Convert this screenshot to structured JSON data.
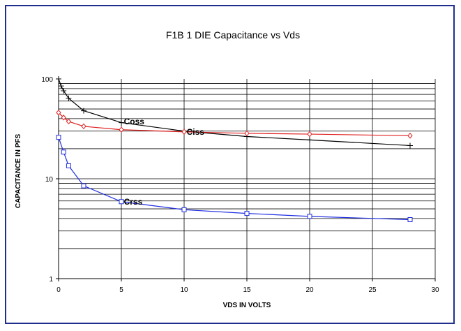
{
  "chart_data": {
    "type": "line",
    "title": "F1B 1 DIE Capacitance vs Vds",
    "xlabel": "VDS IN VOLTS",
    "ylabel": "CAPACITANCE IN PFS",
    "xlim": [
      0,
      30
    ],
    "ylim": [
      1,
      100
    ],
    "yscale": "log",
    "grid": true,
    "x_ticks": [
      "0",
      "5",
      "10",
      "15",
      "20",
      "25",
      "30"
    ],
    "y_ticks": [
      "1",
      "10",
      "100"
    ],
    "series": [
      {
        "name": "Coss",
        "color": "#000000",
        "marker": "plus",
        "x": [
          0,
          0.2,
          0.4,
          0.8,
          2,
          5,
          10,
          15,
          20,
          28
        ],
        "y": [
          100,
          85,
          76,
          64,
          48,
          36.5,
          30,
          26.5,
          24.5,
          21.5
        ]
      },
      {
        "name": "Ciss",
        "color": "#e02020",
        "marker": "diamond",
        "x": [
          0,
          0.4,
          0.8,
          2,
          5,
          10,
          15,
          20,
          28
        ],
        "y": [
          46,
          41,
          37.5,
          33.5,
          31,
          29.5,
          28.5,
          28,
          27
        ]
      },
      {
        "name": "Crss",
        "color": "#1f2ee0",
        "marker": "square",
        "x": [
          0,
          0.4,
          0.8,
          2,
          5,
          10,
          15,
          20,
          28
        ],
        "y": [
          26,
          18.5,
          13.5,
          8.5,
          5.9,
          4.9,
          4.5,
          4.2,
          3.9
        ]
      }
    ],
    "annotations": [
      {
        "text": "Coss",
        "x": 5.2,
        "y": 37.5
      },
      {
        "text": "Ciss",
        "x": 10.2,
        "y": 29.5
      },
      {
        "text": "Crss",
        "x": 5.2,
        "y": 5.9
      }
    ]
  }
}
